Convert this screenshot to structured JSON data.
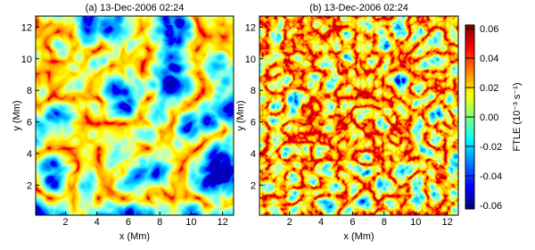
{
  "chart_data": [
    {
      "type": "heatmap",
      "title": "(a) 13-Dec-2006 02:24",
      "xlabel": "x (Mm)",
      "ylabel": "y (Mm)",
      "xlim": [
        0.1,
        12.7
      ],
      "ylim": [
        0.1,
        12.7
      ],
      "xticks": [
        2,
        4,
        6,
        8,
        10,
        12
      ],
      "yticks": [
        2,
        4,
        6,
        8,
        10,
        12
      ]
    },
    {
      "type": "heatmap",
      "title": "(b) 13-Dec-2006 02:24",
      "xlabel": "x (Mm)",
      "ylabel": "y (Mm)",
      "xlim": [
        0.1,
        12.7
      ],
      "ylim": [
        0.1,
        12.7
      ],
      "xticks": [
        2,
        4,
        6,
        8,
        10,
        12
      ],
      "yticks": [
        2,
        4,
        6,
        8,
        10,
        12
      ],
      "colorbar": {
        "label": "FTLE (10⁻³ s⁻¹)",
        "lim": [
          -0.0625,
          0.0625
        ],
        "ticks": [
          0.06,
          0.04,
          0.02,
          {
            "value": 0,
            "label": "0.00"
          },
          -0.02,
          -0.04,
          -0.06
        ]
      }
    }
  ]
}
